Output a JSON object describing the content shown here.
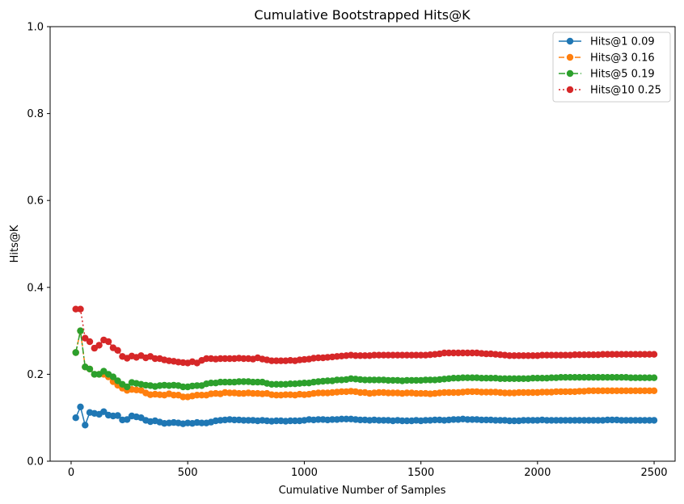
{
  "chart_data": {
    "type": "line",
    "title": "Cumulative Bootstrapped Hits@K",
    "xlabel": "Cumulative Number of Samples",
    "ylabel": "Hits@K",
    "xlim": [
      -90,
      2590
    ],
    "ylim": [
      0,
      1.0
    ],
    "x_ticks": [
      0,
      500,
      1000,
      1500,
      2000,
      2500
    ],
    "x_tick_labels": [
      "0",
      "500",
      "1000",
      "1500",
      "2000",
      "2500"
    ],
    "y_ticks": [
      0.0,
      0.2,
      0.4,
      0.6,
      0.8,
      1.0
    ],
    "y_tick_labels": [
      "0.0",
      "0.2",
      "0.4",
      "0.6",
      "0.8",
      "1.0"
    ],
    "grid": false,
    "legend_position": "top-right",
    "x": [
      20,
      40,
      60,
      80,
      100,
      120,
      140,
      160,
      180,
      200,
      220,
      240,
      260,
      280,
      300,
      320,
      340,
      360,
      380,
      400,
      420,
      440,
      460,
      480,
      500,
      520,
      540,
      560,
      580,
      600,
      620,
      640,
      660,
      680,
      700,
      720,
      740,
      760,
      780,
      800,
      820,
      840,
      860,
      880,
      900,
      920,
      940,
      960,
      980,
      1000,
      1020,
      1040,
      1060,
      1080,
      1100,
      1120,
      1140,
      1160,
      1180,
      1200,
      1220,
      1240,
      1260,
      1280,
      1300,
      1320,
      1340,
      1360,
      1380,
      1400,
      1420,
      1440,
      1460,
      1480,
      1500,
      1520,
      1540,
      1560,
      1580,
      1600,
      1620,
      1640,
      1660,
      1680,
      1700,
      1720,
      1740,
      1760,
      1780,
      1800,
      1820,
      1840,
      1860,
      1880,
      1900,
      1920,
      1940,
      1960,
      1980,
      2000,
      2020,
      2040,
      2060,
      2080,
      2100,
      2120,
      2140,
      2160,
      2180,
      2200,
      2220,
      2240,
      2260,
      2280,
      2300,
      2320,
      2340,
      2360,
      2380,
      2400,
      2420,
      2440,
      2460,
      2480,
      2500
    ],
    "series": [
      {
        "name": "Hits@1 0.09",
        "color": "#1f77b4",
        "linestyle": "solid",
        "values": [
          0.1,
          0.125,
          0.083,
          0.112,
          0.11,
          0.108,
          0.114,
          0.106,
          0.104,
          0.105,
          0.095,
          0.096,
          0.104,
          0.102,
          0.1,
          0.094,
          0.091,
          0.093,
          0.09,
          0.087,
          0.088,
          0.089,
          0.088,
          0.086,
          0.088,
          0.087,
          0.089,
          0.088,
          0.088,
          0.09,
          0.093,
          0.094,
          0.095,
          0.096,
          0.095,
          0.095,
          0.094,
          0.094,
          0.094,
          0.093,
          0.094,
          0.093,
          0.092,
          0.093,
          0.093,
          0.092,
          0.093,
          0.093,
          0.093,
          0.094,
          0.096,
          0.095,
          0.096,
          0.096,
          0.095,
          0.096,
          0.096,
          0.097,
          0.097,
          0.097,
          0.096,
          0.095,
          0.095,
          0.094,
          0.095,
          0.094,
          0.094,
          0.094,
          0.093,
          0.094,
          0.093,
          0.093,
          0.093,
          0.094,
          0.093,
          0.094,
          0.094,
          0.095,
          0.095,
          0.094,
          0.095,
          0.096,
          0.096,
          0.097,
          0.096,
          0.096,
          0.096,
          0.095,
          0.095,
          0.095,
          0.094,
          0.094,
          0.094,
          0.093,
          0.093,
          0.093,
          0.094,
          0.094,
          0.094,
          0.094,
          0.095,
          0.094,
          0.094,
          0.094,
          0.094,
          0.094,
          0.094,
          0.094,
          0.094,
          0.094,
          0.094,
          0.094,
          0.094,
          0.094,
          0.095,
          0.095,
          0.095,
          0.094,
          0.094,
          0.094,
          0.094,
          0.094,
          0.094,
          0.094,
          0.094
        ]
      },
      {
        "name": "Hits@3 0.16",
        "color": "#ff7f0e",
        "linestyle": "dashed",
        "values": [
          0.25,
          0.3,
          0.217,
          0.212,
          0.2,
          0.2,
          0.2,
          0.194,
          0.183,
          0.175,
          0.168,
          0.163,
          0.165,
          0.164,
          0.163,
          0.157,
          0.153,
          0.154,
          0.153,
          0.152,
          0.155,
          0.152,
          0.152,
          0.148,
          0.148,
          0.15,
          0.152,
          0.152,
          0.152,
          0.155,
          0.156,
          0.155,
          0.158,
          0.157,
          0.157,
          0.156,
          0.156,
          0.157,
          0.156,
          0.156,
          0.155,
          0.156,
          0.153,
          0.152,
          0.152,
          0.153,
          0.153,
          0.152,
          0.154,
          0.153,
          0.154,
          0.156,
          0.157,
          0.157,
          0.157,
          0.158,
          0.159,
          0.16,
          0.16,
          0.161,
          0.16,
          0.158,
          0.158,
          0.156,
          0.157,
          0.158,
          0.158,
          0.157,
          0.157,
          0.157,
          0.156,
          0.157,
          0.157,
          0.156,
          0.156,
          0.156,
          0.155,
          0.156,
          0.157,
          0.158,
          0.158,
          0.158,
          0.158,
          0.159,
          0.16,
          0.16,
          0.16,
          0.159,
          0.159,
          0.159,
          0.159,
          0.158,
          0.157,
          0.157,
          0.157,
          0.158,
          0.158,
          0.158,
          0.158,
          0.158,
          0.159,
          0.159,
          0.159,
          0.16,
          0.16,
          0.16,
          0.16,
          0.16,
          0.161,
          0.161,
          0.162,
          0.162,
          0.162,
          0.162,
          0.162,
          0.162,
          0.162,
          0.162,
          0.162,
          0.162,
          0.162,
          0.162,
          0.162,
          0.162,
          0.162
        ]
      },
      {
        "name": "Hits@5 0.19",
        "color": "#2ca02c",
        "linestyle": "dashdot",
        "values": [
          0.25,
          0.3,
          0.217,
          0.212,
          0.2,
          0.2,
          0.207,
          0.2,
          0.194,
          0.185,
          0.177,
          0.171,
          0.181,
          0.179,
          0.177,
          0.175,
          0.174,
          0.172,
          0.174,
          0.175,
          0.174,
          0.175,
          0.174,
          0.171,
          0.171,
          0.173,
          0.174,
          0.174,
          0.178,
          0.18,
          0.18,
          0.182,
          0.182,
          0.182,
          0.182,
          0.183,
          0.183,
          0.183,
          0.182,
          0.182,
          0.182,
          0.179,
          0.177,
          0.177,
          0.177,
          0.177,
          0.178,
          0.178,
          0.179,
          0.18,
          0.18,
          0.182,
          0.183,
          0.184,
          0.185,
          0.185,
          0.187,
          0.187,
          0.188,
          0.19,
          0.189,
          0.188,
          0.187,
          0.187,
          0.187,
          0.187,
          0.187,
          0.186,
          0.186,
          0.186,
          0.185,
          0.186,
          0.186,
          0.186,
          0.186,
          0.187,
          0.187,
          0.187,
          0.188,
          0.189,
          0.19,
          0.191,
          0.191,
          0.192,
          0.192,
          0.192,
          0.192,
          0.191,
          0.191,
          0.191,
          0.191,
          0.19,
          0.19,
          0.19,
          0.19,
          0.19,
          0.19,
          0.19,
          0.191,
          0.191,
          0.191,
          0.191,
          0.192,
          0.192,
          0.193,
          0.193,
          0.193,
          0.193,
          0.193,
          0.193,
          0.193,
          0.193,
          0.193,
          0.193,
          0.193,
          0.193,
          0.193,
          0.193,
          0.193,
          0.192,
          0.192,
          0.192,
          0.192,
          0.192,
          0.192
        ]
      },
      {
        "name": "Hits@10 0.25",
        "color": "#d62728",
        "linestyle": "dotted",
        "values": [
          0.35,
          0.35,
          0.283,
          0.275,
          0.26,
          0.267,
          0.279,
          0.275,
          0.261,
          0.255,
          0.241,
          0.237,
          0.242,
          0.239,
          0.243,
          0.238,
          0.241,
          0.236,
          0.236,
          0.233,
          0.231,
          0.23,
          0.228,
          0.227,
          0.226,
          0.229,
          0.226,
          0.232,
          0.236,
          0.236,
          0.235,
          0.236,
          0.236,
          0.236,
          0.236,
          0.237,
          0.236,
          0.236,
          0.235,
          0.238,
          0.235,
          0.233,
          0.231,
          0.231,
          0.231,
          0.231,
          0.232,
          0.231,
          0.233,
          0.234,
          0.235,
          0.237,
          0.238,
          0.238,
          0.239,
          0.24,
          0.241,
          0.242,
          0.243,
          0.244,
          0.243,
          0.243,
          0.243,
          0.243,
          0.244,
          0.244,
          0.244,
          0.244,
          0.244,
          0.244,
          0.244,
          0.244,
          0.244,
          0.244,
          0.244,
          0.244,
          0.245,
          0.246,
          0.247,
          0.249,
          0.249,
          0.249,
          0.249,
          0.249,
          0.249,
          0.249,
          0.249,
          0.248,
          0.247,
          0.247,
          0.246,
          0.245,
          0.244,
          0.243,
          0.243,
          0.243,
          0.243,
          0.243,
          0.243,
          0.243,
          0.244,
          0.244,
          0.244,
          0.244,
          0.244,
          0.244,
          0.244,
          0.245,
          0.245,
          0.245,
          0.245,
          0.245,
          0.245,
          0.246,
          0.246,
          0.246,
          0.246,
          0.246,
          0.246,
          0.246,
          0.246,
          0.246,
          0.246,
          0.246,
          0.246
        ]
      }
    ]
  }
}
